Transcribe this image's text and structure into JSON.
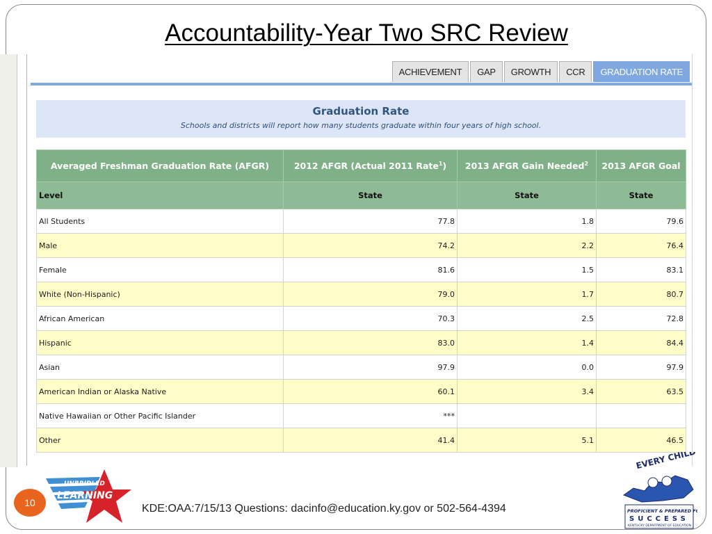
{
  "slide": {
    "title": "Accountability-Year Two SRC Review",
    "page_number": "10",
    "footer": "KDE:OAA:7/15/13  Questions: dacinfo@education.ky.gov or 502-564-4394"
  },
  "tabs": [
    {
      "label": "ACHIEVEMENT",
      "active": false
    },
    {
      "label": "GAP",
      "active": false
    },
    {
      "label": "GROWTH",
      "active": false
    },
    {
      "label": "CCR",
      "active": false
    },
    {
      "label": "GRADUATION RATE",
      "active": true
    }
  ],
  "section": {
    "title": "Graduation Rate",
    "subtitle": "Schools and districts will report how many students graduate within four years of high school."
  },
  "table": {
    "headers": {
      "col1": "Averaged Freshman Graduation Rate (AFGR)",
      "col2": "2012 AFGR (Actual 2011 Rate",
      "col2_sup": "1",
      "col2_tail": ")",
      "col3": "2013 AFGR Gain Needed",
      "col3_sup": "2",
      "col4": "2013 AFGR Goal"
    },
    "subheaders": [
      "Level",
      "State",
      "State",
      "State"
    ],
    "rows": [
      {
        "level": "All Students",
        "afgr_2012": "77.8",
        "gain": "1.8",
        "goal": "79.6"
      },
      {
        "level": "Male",
        "afgr_2012": "74.2",
        "gain": "2.2",
        "goal": "76.4"
      },
      {
        "level": "Female",
        "afgr_2012": "81.6",
        "gain": "1.5",
        "goal": "83.1"
      },
      {
        "level": "White (Non-Hispanic)",
        "afgr_2012": "79.0",
        "gain": "1.7",
        "goal": "80.7"
      },
      {
        "level": "African American",
        "afgr_2012": "70.3",
        "gain": "2.5",
        "goal": "72.8"
      },
      {
        "level": "Hispanic",
        "afgr_2012": "83.0",
        "gain": "1.4",
        "goal": "84.4"
      },
      {
        "level": "Asian",
        "afgr_2012": "97.9",
        "gain": "0.0",
        "goal": "97.9"
      },
      {
        "level": "American Indian or Alaska Native",
        "afgr_2012": "60.1",
        "gain": "3.4",
        "goal": "63.5"
      },
      {
        "level": "Native Hawaiian or Other Pacific Islander",
        "afgr_2012": "***",
        "gain": "",
        "goal": ""
      },
      {
        "level": "Other",
        "afgr_2012": "41.4",
        "gain": "5.1",
        "goal": "46.5"
      }
    ]
  },
  "logos": {
    "left": {
      "icon": "unbridled-learning-logo",
      "text": "UNBRIDLED LEARNING"
    },
    "right": {
      "icon": "every-child-logo",
      "text": "EVERY CHILD PROFICIENT & PREPARED FOR SUCCESS"
    }
  },
  "colors": {
    "tab_active": "#7ea8df",
    "header_green": "#7fb087",
    "row_highlight": "#fffdc8",
    "banner": "#dde6f7",
    "page_badge": "#e8641f"
  }
}
